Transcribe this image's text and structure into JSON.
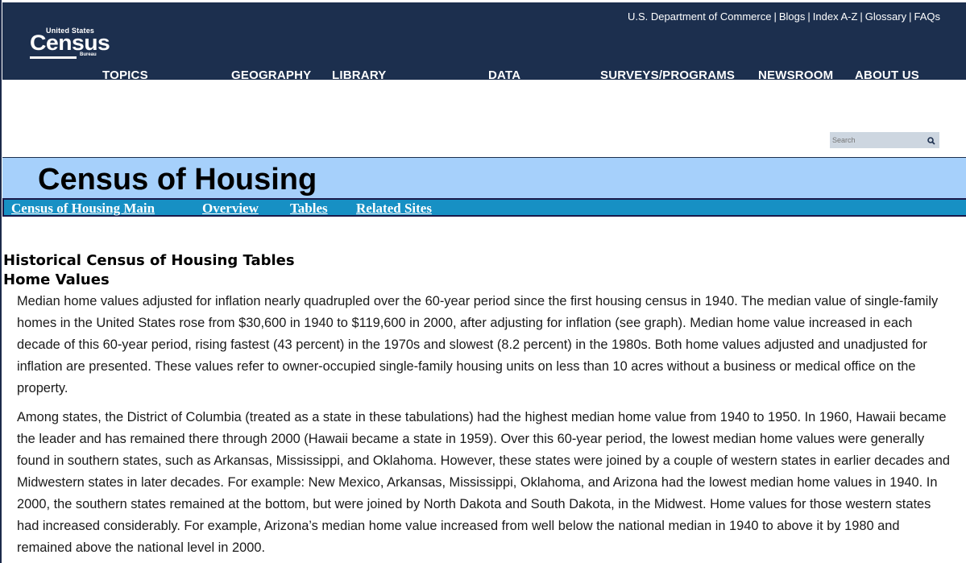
{
  "header": {
    "logo": {
      "top": "United States",
      "main": "Census",
      "sub": "Bureau"
    },
    "top_links": [
      "U.S. Department of Commerce",
      "Blogs",
      "Index A-Z",
      "Glossary",
      "FAQs"
    ],
    "nav": [
      "TOPICS",
      "GEOGRAPHY",
      "LIBRARY",
      "DATA",
      "SURVEYS/PROGRAMS",
      "NEWSROOM",
      "ABOUT US"
    ]
  },
  "search": {
    "placeholder": "Search",
    "icon": "search-icon"
  },
  "banner": {
    "title": "Census of Housing"
  },
  "subnav": [
    "Census of Housing Main",
    "Overview",
    "Tables",
    "Related Sites"
  ],
  "content": {
    "heading": "Historical Census of Housing Tables",
    "subheading": "Home Values",
    "paragraphs": [
      "Median home values adjusted for inflation nearly quadrupled over the 60-year period since the first housing census in 1940.  The median value of single-family homes in the United States rose from $30,600 in 1940 to $119,600 in 2000, after adjusting for inflation (see graph).  Median home value increased in each decade of this 60-year period, rising fastest (43 percent) in the 1970s and slowest (8.2 percent) in the 1980s.  Both home values adjusted and unadjusted for inflation are presented.  These values refer to owner-occupied single-family housing units on less than 10 acres without a business or medical office on the property.",
      "Among states, the District of Columbia (treated as a state in these tabulations) had the highest median home value from 1940 to 1950.  In 1960, Hawaii became the leader and has remained there through 2000 (Hawaii became a state in 1959).  Over this 60-year period, the lowest median home values were generally found in southern states, such as Arkansas, Mississippi, and Oklahoma.  However, these states were joined by a couple of western states in earlier decades and Midwestern states in later decades.  For example: New Mexico, Arkansas, Mississippi, Oklahoma, and Arizona had the lowest median home values in 1940.  In 2000, the southern states remained at the bottom, but were joined by North Dakota and South Dakota, in the Midwest.  Home values for those western states had increased considerably.  For example, Arizona’s median home value increased from well below the national median in 1940 to above it by 1980 and remained above the national level in 2000."
    ]
  },
  "colors": {
    "header_bg": "#1c2f4e",
    "banner_bg": "#a6d0fb",
    "subnav_bg": "#1790c4"
  }
}
